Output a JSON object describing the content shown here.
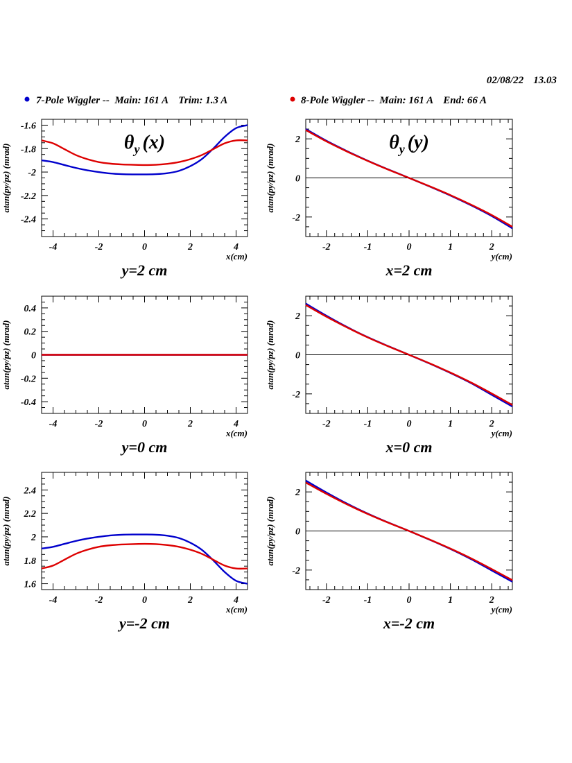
{
  "header": {
    "date": "02/08/22",
    "time": "13.03"
  },
  "legend": [
    {
      "label": "7-Pole Wiggler --  Main: 161 A    Trim: 1.3 A",
      "color": "#0000cc"
    },
    {
      "label": "8-Pole Wiggler --  Main: 161 A    End: 66 A",
      "color": "#dd0000"
    }
  ],
  "chart_data": [
    {
      "type": "line",
      "title": "θy (x)",
      "caption": "y=2 cm",
      "xlabel": "x(cm)",
      "ylabel": "atan(py/pz) (mrad)",
      "xlim": [
        -4.5,
        4.5
      ],
      "ylim": [
        -2.55,
        -1.55
      ],
      "xticks": [
        "-4",
        "-2",
        "0",
        "2",
        "4"
      ],
      "yticks": [
        "-2.4",
        "-2.2",
        "-2",
        "-1.8",
        "-1.6"
      ],
      "yticks_values": [
        -2.4,
        -2.2,
        -2.0,
        -1.8,
        -1.6
      ],
      "xticks_values": [
        -4,
        -2,
        0,
        2,
        4
      ],
      "zero_line": false,
      "series": [
        {
          "name": "7-Pole Wiggler",
          "color": "#0000cc",
          "x": [
            -4.5,
            -4,
            -3.5,
            -3,
            -2.5,
            -2,
            -1.5,
            -1,
            -0.5,
            0,
            0.5,
            1,
            1.5,
            2,
            2.5,
            3,
            3.5,
            4,
            4.5
          ],
          "y": [
            -1.9,
            -1.915,
            -1.94,
            -1.965,
            -1.985,
            -2.0,
            -2.012,
            -2.018,
            -2.02,
            -2.02,
            -2.018,
            -2.01,
            -1.99,
            -1.95,
            -1.89,
            -1.8,
            -1.7,
            -1.625,
            -1.6
          ]
        },
        {
          "name": "8-Pole Wiggler",
          "color": "#dd0000",
          "x": [
            -4.5,
            -4,
            -3.5,
            -3,
            -2.5,
            -2,
            -1.5,
            -1,
            -0.5,
            0,
            0.5,
            1,
            1.5,
            2,
            2.5,
            3,
            3.5,
            4,
            4.5
          ],
          "y": [
            -1.73,
            -1.755,
            -1.805,
            -1.855,
            -1.89,
            -1.915,
            -1.928,
            -1.935,
            -1.938,
            -1.94,
            -1.938,
            -1.93,
            -1.915,
            -1.89,
            -1.855,
            -1.805,
            -1.755,
            -1.73,
            -1.73
          ]
        }
      ]
    },
    {
      "type": "line",
      "title": "θy (y)",
      "caption": "x=2 cm",
      "xlabel": "y(cm)",
      "ylabel": "atan(py/pz) (mrad)",
      "xlim": [
        -2.5,
        2.5
      ],
      "ylim": [
        -3,
        3
      ],
      "xticks": [
        "-2",
        "-1",
        "0",
        "1",
        "2"
      ],
      "xticks_values": [
        -2,
        -1,
        0,
        1,
        2
      ],
      "yticks": [
        "-2",
        "0",
        "2"
      ],
      "yticks_values": [
        -2,
        0,
        2
      ],
      "zero_line": true,
      "series": [
        {
          "name": "7-Pole Wiggler",
          "color": "#0000cc",
          "x": [
            -2.5,
            -2,
            -1.5,
            -1,
            -0.5,
            0,
            0.5,
            1,
            1.5,
            2,
            2.5
          ],
          "y": [
            2.5,
            1.9,
            1.37,
            0.88,
            0.43,
            0.0,
            -0.44,
            -0.9,
            -1.4,
            -1.95,
            -2.58
          ]
        },
        {
          "name": "8-Pole Wiggler",
          "color": "#dd0000",
          "x": [
            -2.5,
            -2,
            -1.5,
            -1,
            -0.5,
            0,
            0.5,
            1,
            1.5,
            2,
            2.5
          ],
          "y": [
            2.45,
            1.87,
            1.35,
            0.87,
            0.42,
            0.0,
            -0.43,
            -0.88,
            -1.37,
            -1.9,
            -2.5
          ]
        }
      ]
    },
    {
      "type": "line",
      "title": "",
      "caption": "y=0 cm",
      "xlabel": "x(cm)",
      "ylabel": "atan(py/pz) (mrad)",
      "xlim": [
        -4.5,
        4.5
      ],
      "ylim": [
        -0.5,
        0.5
      ],
      "xticks": [
        "-4",
        "-2",
        "0",
        "2",
        "4"
      ],
      "xticks_values": [
        -4,
        -2,
        0,
        2,
        4
      ],
      "yticks": [
        "-0.4",
        "-0.2",
        "0",
        "0.2",
        "0.4"
      ],
      "yticks_values": [
        -0.4,
        -0.2,
        0,
        0.2,
        0.4
      ],
      "zero_line": false,
      "series": [
        {
          "name": "7-Pole Wiggler",
          "color": "#0000cc",
          "x": [
            -4.5,
            4.5
          ],
          "y": [
            0,
            0
          ]
        },
        {
          "name": "8-Pole Wiggler",
          "color": "#dd0000",
          "x": [
            -4.5,
            4.5
          ],
          "y": [
            0,
            0
          ]
        }
      ]
    },
    {
      "type": "line",
      "title": "",
      "caption": "x=0 cm",
      "xlabel": "y(cm)",
      "ylabel": "atan(py/pz) (mrad)",
      "xlim": [
        -2.5,
        2.5
      ],
      "ylim": [
        -3,
        3
      ],
      "xticks": [
        "-2",
        "-1",
        "0",
        "1",
        "2"
      ],
      "xticks_values": [
        -2,
        -1,
        0,
        1,
        2
      ],
      "yticks": [
        "-2",
        "0",
        "2"
      ],
      "yticks_values": [
        -2,
        0,
        2
      ],
      "zero_line": true,
      "series": [
        {
          "name": "7-Pole Wiggler",
          "color": "#0000cc",
          "x": [
            -2.5,
            -2,
            -1.5,
            -1,
            -0.5,
            0,
            0.5,
            1,
            1.5,
            2,
            2.5
          ],
          "y": [
            2.62,
            2.0,
            1.42,
            0.9,
            0.44,
            0.0,
            -0.45,
            -0.93,
            -1.45,
            -2.05,
            -2.65
          ]
        },
        {
          "name": "8-Pole Wiggler",
          "color": "#dd0000",
          "x": [
            -2.5,
            -2,
            -1.5,
            -1,
            -0.5,
            0,
            0.5,
            1,
            1.5,
            2,
            2.5
          ],
          "y": [
            2.55,
            1.95,
            1.4,
            0.89,
            0.43,
            0.0,
            -0.44,
            -0.91,
            -1.42,
            -1.98,
            -2.57
          ]
        }
      ]
    },
    {
      "type": "line",
      "title": "",
      "caption": "y=-2 cm",
      "xlabel": "x(cm)",
      "ylabel": "atan(py/pz) (mrad)",
      "xlim": [
        -4.5,
        4.5
      ],
      "ylim": [
        1.55,
        2.55
      ],
      "xticks": [
        "-4",
        "-2",
        "0",
        "2",
        "4"
      ],
      "xticks_values": [
        -4,
        -2,
        0,
        2,
        4
      ],
      "yticks": [
        "1.6",
        "1.8",
        "2",
        "2.2",
        "2.4"
      ],
      "yticks_values": [
        1.6,
        1.8,
        2.0,
        2.2,
        2.4
      ],
      "zero_line": false,
      "series": [
        {
          "name": "7-Pole Wiggler",
          "color": "#0000cc",
          "x": [
            -4.5,
            -4,
            -3.5,
            -3,
            -2.5,
            -2,
            -1.5,
            -1,
            -0.5,
            0,
            0.5,
            1,
            1.5,
            2,
            2.5,
            3,
            3.5,
            4,
            4.5
          ],
          "y": [
            1.9,
            1.915,
            1.94,
            1.965,
            1.985,
            2.0,
            2.012,
            2.018,
            2.02,
            2.02,
            2.018,
            2.01,
            1.99,
            1.95,
            1.89,
            1.8,
            1.7,
            1.625,
            1.6
          ]
        },
        {
          "name": "8-Pole Wiggler",
          "color": "#dd0000",
          "x": [
            -4.5,
            -4,
            -3.5,
            -3,
            -2.5,
            -2,
            -1.5,
            -1,
            -0.5,
            0,
            0.5,
            1,
            1.5,
            2,
            2.5,
            3,
            3.5,
            4,
            4.5
          ],
          "y": [
            1.73,
            1.755,
            1.805,
            1.855,
            1.89,
            1.915,
            1.928,
            1.935,
            1.938,
            1.94,
            1.938,
            1.93,
            1.915,
            1.89,
            1.855,
            1.805,
            1.755,
            1.73,
            1.73
          ]
        }
      ]
    },
    {
      "type": "line",
      "title": "",
      "caption": "x=-2 cm",
      "xlabel": "y(cm)",
      "ylabel": "atan(py/pz) (mrad)",
      "xlim": [
        -2.5,
        2.5
      ],
      "ylim": [
        -3,
        3
      ],
      "xticks": [
        "-2",
        "-1",
        "0",
        "1",
        "2"
      ],
      "xticks_values": [
        -2,
        -1,
        0,
        1,
        2
      ],
      "yticks": [
        "-2",
        "0",
        "2"
      ],
      "yticks_values": [
        -2,
        0,
        2
      ],
      "zero_line": true,
      "series": [
        {
          "name": "7-Pole Wiggler",
          "color": "#0000cc",
          "x": [
            -2.5,
            -2,
            -1.5,
            -1,
            -0.5,
            0,
            0.5,
            1,
            1.5,
            2,
            2.5
          ],
          "y": [
            2.58,
            1.97,
            1.4,
            0.89,
            0.43,
            0.0,
            -0.45,
            -0.92,
            -1.44,
            -2.02,
            -2.6
          ]
        },
        {
          "name": "8-Pole Wiggler",
          "color": "#dd0000",
          "x": [
            -2.5,
            -2,
            -1.5,
            -1,
            -0.5,
            0,
            0.5,
            1,
            1.5,
            2,
            2.5
          ],
          "y": [
            2.48,
            1.9,
            1.36,
            0.87,
            0.42,
            0.0,
            -0.44,
            -0.9,
            -1.4,
            -1.95,
            -2.52
          ]
        }
      ]
    }
  ]
}
